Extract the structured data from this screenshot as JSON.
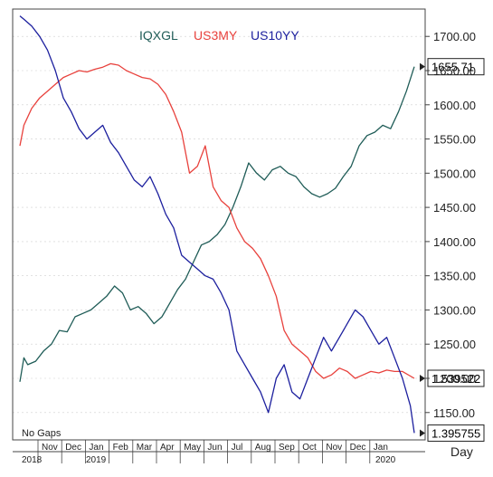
{
  "legend": {
    "iqxgl": "IQXGL",
    "us3my": "US3MY",
    "us10yy": "US10YY"
  },
  "note": "No  Gaps",
  "period_label": "Day",
  "colors": {
    "iqxgl": "#1f5c57",
    "us3my": "#e8413c",
    "us10yy": "#1c1f9e",
    "frame": "#444444",
    "grid": "#cfcfcf"
  },
  "chart_data": {
    "type": "line",
    "title": "",
    "y_right_axis": {
      "min": 1110,
      "max": 1740,
      "ticks": [
        "1700.00",
        "1650.00",
        "1600.00",
        "1550.00",
        "1500.00",
        "1450.00",
        "1400.00",
        "1350.00",
        "1300.00",
        "1250.00",
        "1200.00",
        "1150.00"
      ]
    },
    "x_axis": {
      "month_labels": [
        "Nov",
        "Dec",
        "Jan",
        "Feb",
        "Mar",
        "Apr",
        "May",
        "Jun",
        "Jul",
        "Aug",
        "Sep",
        "Oct",
        "Nov",
        "Dec",
        "Jan"
      ],
      "year_labels": [
        "2018",
        "2019",
        "2020"
      ]
    },
    "series": [
      {
        "name": "IQXGL",
        "key": "iqxgl",
        "last_label": "1655.71",
        "x": [
          0,
          0.01,
          0.02,
          0.04,
          0.06,
          0.08,
          0.1,
          0.12,
          0.14,
          0.16,
          0.18,
          0.2,
          0.22,
          0.24,
          0.26,
          0.28,
          0.3,
          0.32,
          0.34,
          0.36,
          0.38,
          0.4,
          0.42,
          0.44,
          0.46,
          0.48,
          0.5,
          0.52,
          0.54,
          0.56,
          0.58,
          0.6,
          0.62,
          0.64,
          0.66,
          0.68,
          0.7,
          0.72,
          0.74,
          0.76,
          0.78,
          0.8,
          0.82,
          0.84,
          0.86,
          0.88,
          0.9,
          0.92,
          0.94,
          0.96,
          0.98,
          1.0
        ],
        "values": [
          1195,
          1230,
          1220,
          1225,
          1240,
          1250,
          1270,
          1268,
          1290,
          1295,
          1300,
          1310,
          1320,
          1335,
          1325,
          1300,
          1305,
          1295,
          1280,
          1290,
          1310,
          1330,
          1345,
          1370,
          1395,
          1400,
          1410,
          1425,
          1450,
          1480,
          1515,
          1500,
          1490,
          1505,
          1510,
          1500,
          1495,
          1480,
          1470,
          1465,
          1470,
          1478,
          1495,
          1510,
          1540,
          1555,
          1560,
          1570,
          1565,
          1590,
          1620,
          1655.71
        ]
      },
      {
        "name": "US3MY",
        "key": "us3my",
        "last_label": "1.539522",
        "x": [
          0,
          0.01,
          0.03,
          0.05,
          0.07,
          0.09,
          0.11,
          0.13,
          0.15,
          0.17,
          0.19,
          0.21,
          0.23,
          0.25,
          0.27,
          0.29,
          0.31,
          0.33,
          0.35,
          0.37,
          0.39,
          0.41,
          0.43,
          0.45,
          0.47,
          0.49,
          0.51,
          0.53,
          0.55,
          0.57,
          0.59,
          0.61,
          0.63,
          0.65,
          0.67,
          0.69,
          0.71,
          0.73,
          0.75,
          0.77,
          0.79,
          0.81,
          0.83,
          0.85,
          0.87,
          0.89,
          0.91,
          0.93,
          0.95,
          0.97,
          1.0
        ],
        "values": [
          1540,
          1570,
          1595,
          1610,
          1620,
          1630,
          1640,
          1645,
          1650,
          1648,
          1652,
          1655,
          1660,
          1658,
          1650,
          1645,
          1640,
          1638,
          1630,
          1615,
          1590,
          1560,
          1500,
          1510,
          1540,
          1480,
          1460,
          1450,
          1420,
          1400,
          1390,
          1375,
          1350,
          1320,
          1270,
          1250,
          1240,
          1230,
          1210,
          1200,
          1205,
          1215,
          1210,
          1200,
          1205,
          1210,
          1208,
          1212,
          1210,
          1210,
          1200
        ]
      },
      {
        "name": "US10YY",
        "key": "us10yy",
        "last_label": "1.395755",
        "x": [
          0,
          0.01,
          0.03,
          0.05,
          0.07,
          0.09,
          0.11,
          0.13,
          0.15,
          0.17,
          0.19,
          0.21,
          0.23,
          0.25,
          0.27,
          0.29,
          0.31,
          0.33,
          0.35,
          0.37,
          0.39,
          0.41,
          0.43,
          0.45,
          0.47,
          0.49,
          0.51,
          0.53,
          0.55,
          0.57,
          0.59,
          0.61,
          0.63,
          0.65,
          0.67,
          0.69,
          0.71,
          0.73,
          0.75,
          0.77,
          0.79,
          0.81,
          0.83,
          0.85,
          0.87,
          0.89,
          0.91,
          0.93,
          0.95,
          0.97,
          0.99,
          1.0
        ],
        "values": [
          1730,
          1725,
          1715,
          1700,
          1680,
          1650,
          1610,
          1590,
          1565,
          1550,
          1560,
          1570,
          1545,
          1530,
          1510,
          1490,
          1480,
          1495,
          1470,
          1440,
          1420,
          1380,
          1370,
          1360,
          1350,
          1345,
          1325,
          1300,
          1240,
          1220,
          1200,
          1180,
          1150,
          1200,
          1220,
          1180,
          1170,
          1200,
          1230,
          1260,
          1240,
          1260,
          1280,
          1300,
          1290,
          1270,
          1250,
          1260,
          1230,
          1200,
          1160,
          1120
        ]
      }
    ]
  }
}
